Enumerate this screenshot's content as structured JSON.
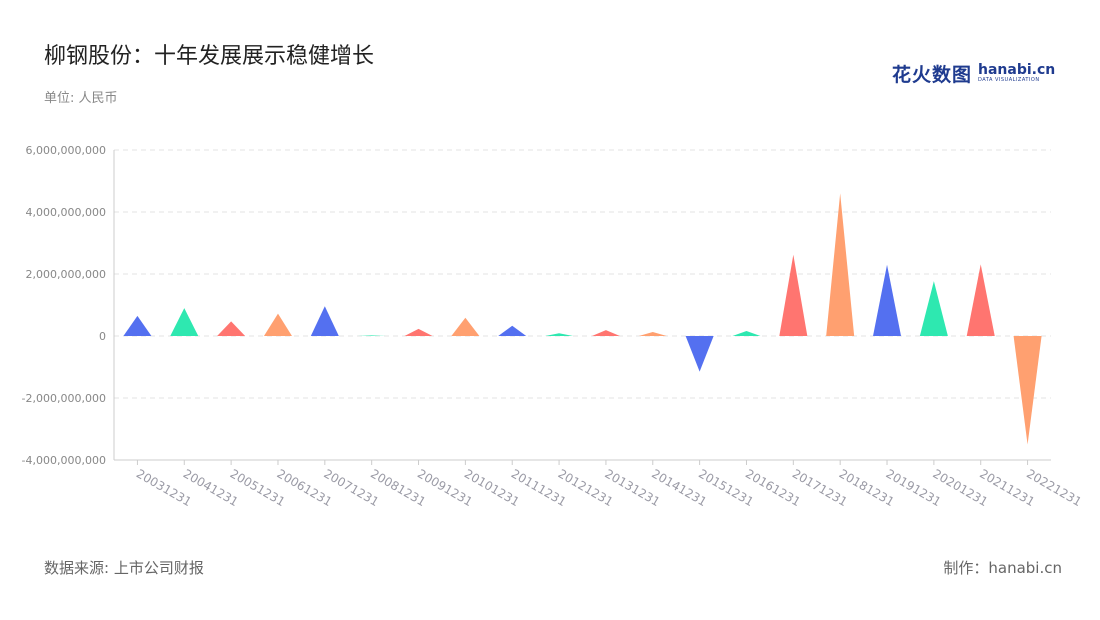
{
  "header": {
    "title": "柳钢股份：十年发展展示稳健增长",
    "subtitle": "单位: 人民币"
  },
  "logo": {
    "cn": "花火数图",
    "en": "hanabi.cn",
    "en_sub": "DATA VISUALIZATION"
  },
  "footer": {
    "source": "数据来源: 上市公司财报",
    "credit": "制作：hanabi.cn"
  },
  "colors": {
    "palette": [
      "#5470f0",
      "#2ee8b0",
      "#ff7570",
      "#ffa070"
    ],
    "grid": "#e3e3e3",
    "axis": "#cccccc"
  },
  "chart_data": {
    "type": "bar",
    "mark_shape": "triangle",
    "title": "柳钢股份：十年发展展示稳健增长",
    "subtitle": "单位: 人民币",
    "xlabel": "",
    "ylabel": "",
    "ylim": [
      -4000000000,
      6000000000
    ],
    "yticks": [
      -4000000000,
      -2000000000,
      0,
      2000000000,
      4000000000,
      6000000000
    ],
    "ytick_labels": [
      "-4,000,000,000",
      "-2,000,000,000",
      "0",
      "2,000,000,000",
      "4,000,000,000",
      "6,000,000,000"
    ],
    "grid": true,
    "legend": "none",
    "categories": [
      "20031231",
      "20041231",
      "20051231",
      "20061231",
      "20071231",
      "20081231",
      "20091231",
      "20101231",
      "20111231",
      "20121231",
      "20131231",
      "20141231",
      "20151231",
      "20161231",
      "20171231",
      "20181231",
      "20191231",
      "20201231",
      "20211231",
      "20221231"
    ],
    "values": [
      650000000,
      900000000,
      470000000,
      720000000,
      960000000,
      20000000,
      230000000,
      590000000,
      330000000,
      90000000,
      190000000,
      130000000,
      -1150000000,
      160000000,
      2620000000,
      4600000000,
      2300000000,
      1770000000,
      2310000000,
      -3500000000
    ]
  }
}
